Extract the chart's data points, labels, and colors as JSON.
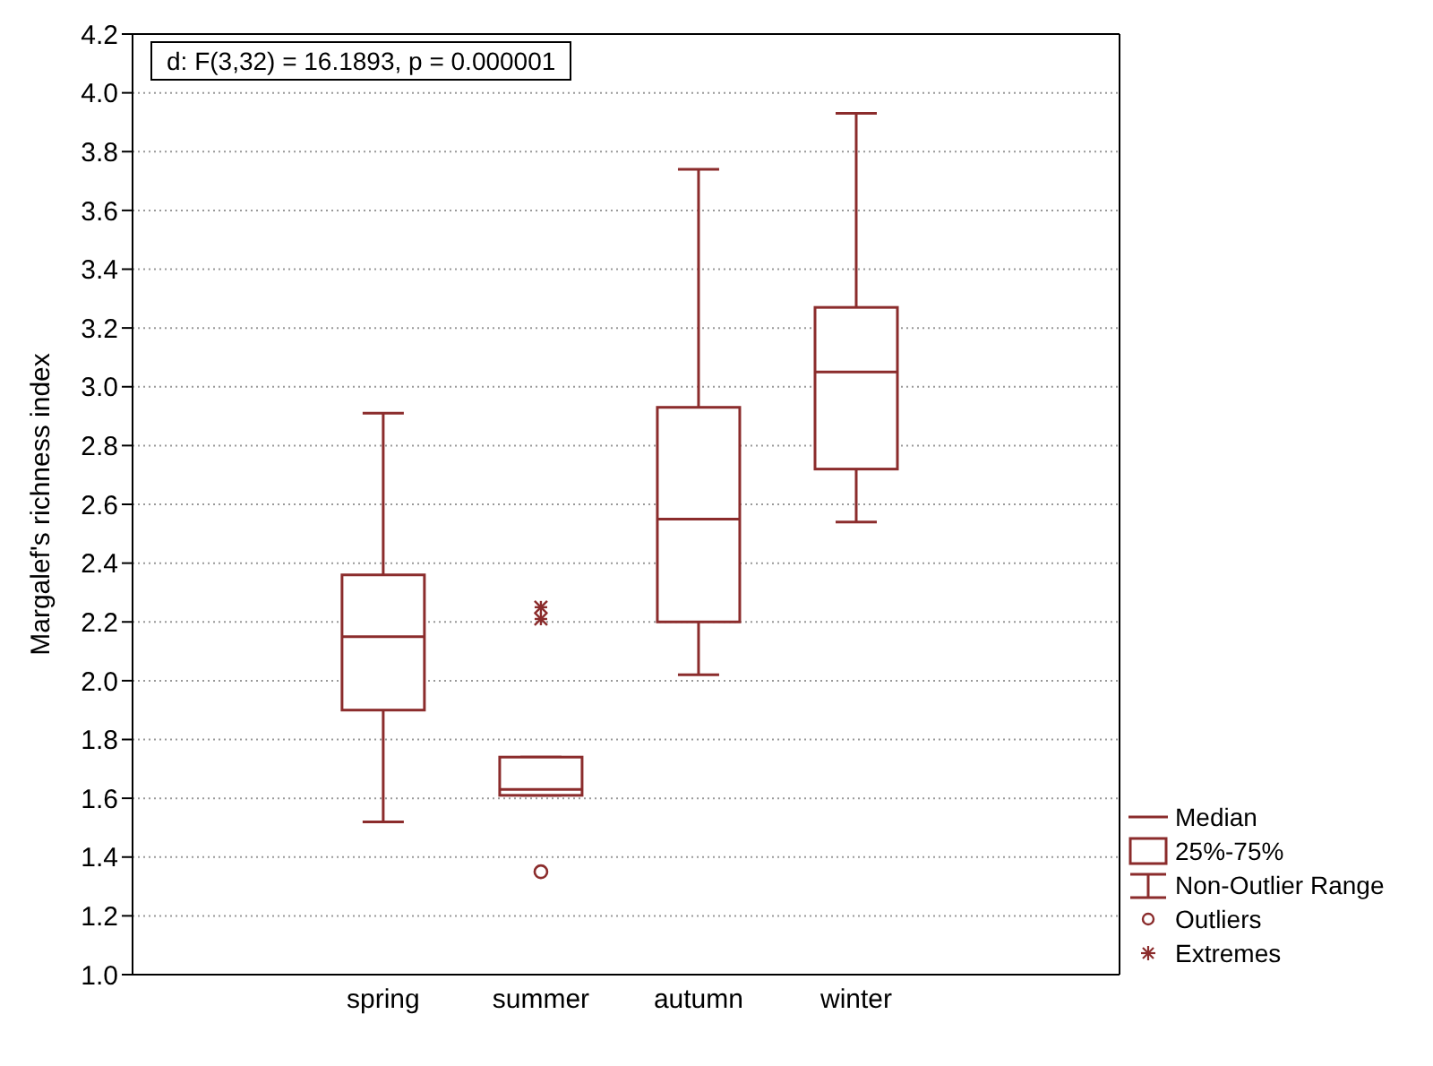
{
  "chart_data": {
    "type": "box",
    "ylabel": "Margalef's richness index",
    "categories": [
      "spring",
      "summer",
      "autumn",
      "winter"
    ],
    "boxes": [
      {
        "low": 1.52,
        "q1": 1.9,
        "median": 2.15,
        "q3": 2.36,
        "high": 2.91
      },
      {
        "low": 1.61,
        "q1": 1.61,
        "median": 1.63,
        "q3": 1.74,
        "high": 1.74
      },
      {
        "low": 2.02,
        "q1": 2.2,
        "median": 2.55,
        "q3": 2.93,
        "high": 3.74
      },
      {
        "low": 2.54,
        "q1": 2.72,
        "median": 3.05,
        "q3": 3.27,
        "high": 3.93
      }
    ],
    "color": "#8b2c2c",
    "series": [
      {
        "type": "scatter",
        "marker": "circle",
        "color": "#8b2c2c",
        "x": [
          "summer"
        ],
        "values": [
          1.35
        ]
      },
      {
        "type": "scatter",
        "marker": "cross",
        "color": "#8b2c2c",
        "x": [
          "summer",
          "summer"
        ],
        "values": [
          2.21,
          2.25
        ]
      }
    ],
    "ylim": [
      1.0,
      4.2
    ],
    "yticks": [
      {
        "value": 1,
        "label": "1.0"
      },
      1.2,
      1.4,
      1.6,
      1.8,
      {
        "value": 2,
        "label": "2.0"
      },
      2.2,
      2.4,
      2.6,
      2.8,
      {
        "value": 3,
        "label": "3.0"
      },
      3.2,
      3.4,
      3.6,
      3.8,
      {
        "value": 4,
        "label": "4.0"
      },
      4.2
    ],
    "grid": "y",
    "annotations": [
      "d:  F(3,32) = 16.1893, p = 0.000001",
      "Median",
      "25%-75%",
      "Non-Outlier Range",
      "Outliers",
      "Extremes"
    ]
  }
}
